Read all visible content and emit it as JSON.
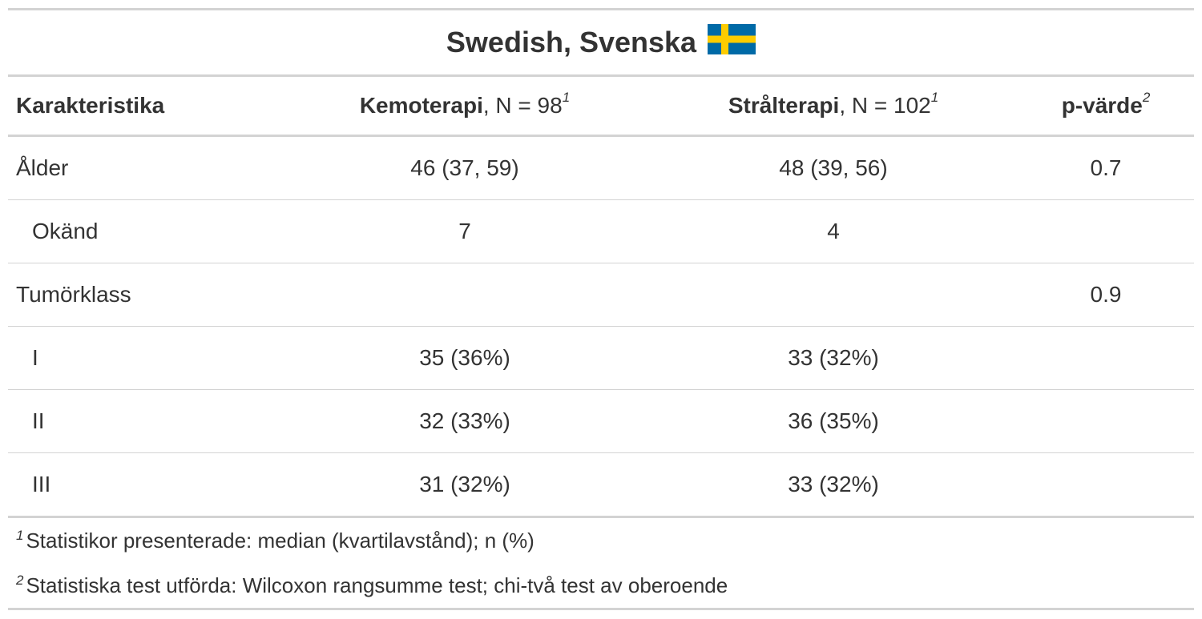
{
  "title": "Swedish, Svenska",
  "flag_colors": {
    "blue": "#006AA7",
    "yellow": "#FECC00"
  },
  "header": {
    "characteristic": "Karakteristika",
    "col1_name": "Kemoterapi",
    "col1_n": ", N = 98",
    "col1_sup": "1",
    "col2_name": "Strålterapi",
    "col2_n": ", N = 102",
    "col2_sup": "1",
    "pvalue": "p-värde",
    "pvalue_sup": "2"
  },
  "rows": [
    {
      "label": "Ålder",
      "c1": "46 (37, 59)",
      "c2": "48 (39, 56)",
      "p": "0.7"
    },
    {
      "label": "Okänd",
      "c1": "7",
      "c2": "4",
      "p": ""
    },
    {
      "label": "Tumörklass",
      "c1": "",
      "c2": "",
      "p": "0.9"
    },
    {
      "label": "I",
      "c1": "35 (36%)",
      "c2": "33 (32%)",
      "p": ""
    },
    {
      "label": "II",
      "c1": "32 (33%)",
      "c2": "36 (35%)",
      "p": ""
    },
    {
      "label": "III",
      "c1": "31 (32%)",
      "c2": "33 (32%)",
      "p": ""
    }
  ],
  "footnotes": [
    {
      "mark": "1",
      "text": "Statistikor presenterade: median (kvartilavstånd); n (%)"
    },
    {
      "mark": "2",
      "text": "Statistiska test utförda: Wilcoxon rangsumme test; chi-två test av oberoende"
    }
  ]
}
